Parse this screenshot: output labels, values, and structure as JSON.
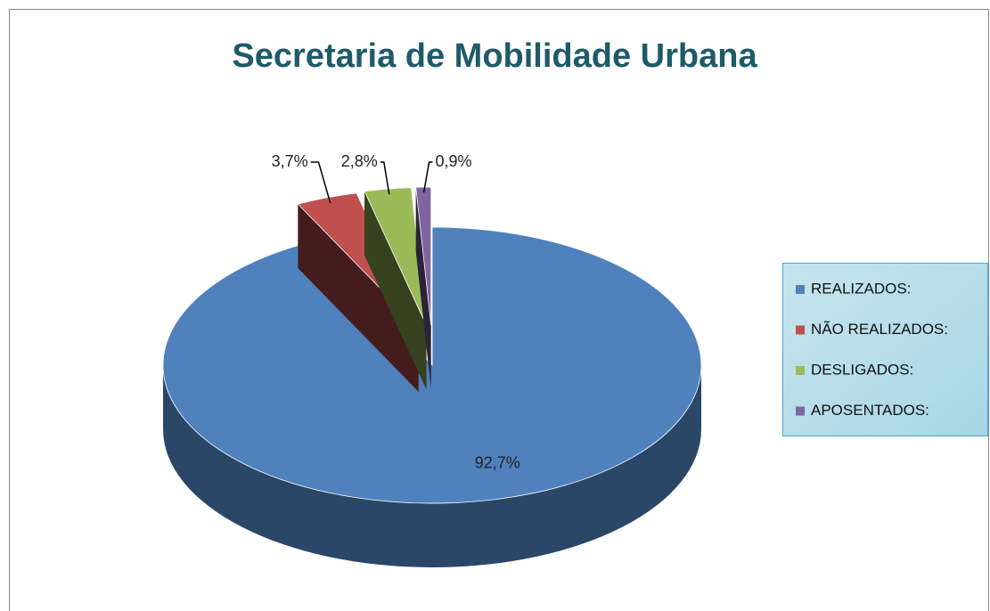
{
  "chart_data": {
    "type": "pie",
    "title": "Secretaria de Mobilidade Urbana",
    "categories": [
      "REALIZADOS:",
      "NÃO REALIZADOS:",
      "DESLIGADOS:",
      "APOSENTADOS:"
    ],
    "values": [
      92.7,
      3.7,
      2.8,
      0.9
    ],
    "value_labels": [
      "92,7%",
      "3,7%",
      "2,8%",
      "0,9%"
    ],
    "colors": [
      "#4f81bd",
      "#c0504d",
      "#9bbb59",
      "#8064a2"
    ],
    "legend": "right"
  }
}
